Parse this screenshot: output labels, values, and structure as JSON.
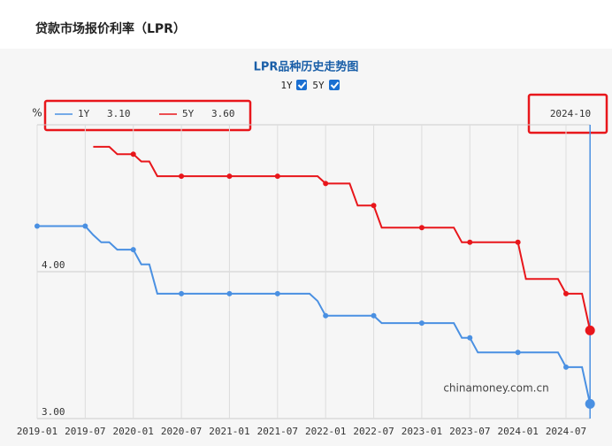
{
  "header": {
    "title": "贷款市场报价利率（LPR）"
  },
  "chart_data": {
    "type": "line",
    "title": "LPR品种历史走势图",
    "watermark": "chinamoney.com.cn",
    "y_unit": "%",
    "toggles": [
      "1Y",
      "5Y"
    ],
    "x": [
      "2019-01",
      "2019-02",
      "2019-03",
      "2019-04",
      "2019-05",
      "2019-06",
      "2019-07",
      "2019-08",
      "2019-09",
      "2019-10",
      "2019-11",
      "2019-12",
      "2020-01",
      "2020-02",
      "2020-03",
      "2020-04",
      "2020-05",
      "2020-06",
      "2020-07",
      "2020-08",
      "2020-09",
      "2020-10",
      "2020-11",
      "2020-12",
      "2021-01",
      "2021-02",
      "2021-03",
      "2021-04",
      "2021-05",
      "2021-06",
      "2021-07",
      "2021-08",
      "2021-09",
      "2021-10",
      "2021-11",
      "2021-12",
      "2022-01",
      "2022-02",
      "2022-03",
      "2022-04",
      "2022-05",
      "2022-06",
      "2022-07",
      "2022-08",
      "2022-09",
      "2022-10",
      "2022-11",
      "2022-12",
      "2023-01",
      "2023-02",
      "2023-03",
      "2023-04",
      "2023-05",
      "2023-06",
      "2023-07",
      "2023-08",
      "2023-09",
      "2023-10",
      "2023-11",
      "2023-12",
      "2024-01",
      "2024-02",
      "2024-03",
      "2024-04",
      "2024-05",
      "2024-06",
      "2024-07",
      "2024-08",
      "2024-09",
      "2024-10"
    ],
    "series": [
      {
        "name": "1Y",
        "color": "#4a90e2",
        "current_label": "3.10",
        "values": [
          4.31,
          4.31,
          4.31,
          4.31,
          4.31,
          4.31,
          4.31,
          4.25,
          4.2,
          4.2,
          4.15,
          4.15,
          4.15,
          4.05,
          4.05,
          3.85,
          3.85,
          3.85,
          3.85,
          3.85,
          3.85,
          3.85,
          3.85,
          3.85,
          3.85,
          3.85,
          3.85,
          3.85,
          3.85,
          3.85,
          3.85,
          3.85,
          3.85,
          3.85,
          3.85,
          3.8,
          3.7,
          3.7,
          3.7,
          3.7,
          3.7,
          3.7,
          3.7,
          3.65,
          3.65,
          3.65,
          3.65,
          3.65,
          3.65,
          3.65,
          3.65,
          3.65,
          3.65,
          3.55,
          3.55,
          3.45,
          3.45,
          3.45,
          3.45,
          3.45,
          3.45,
          3.45,
          3.45,
          3.45,
          3.45,
          3.45,
          3.35,
          3.35,
          3.35,
          3.1
        ]
      },
      {
        "name": "5Y",
        "color": "#e8161b",
        "current_label": "3.60",
        "values": [
          null,
          null,
          null,
          null,
          null,
          null,
          null,
          4.85,
          4.85,
          4.85,
          4.8,
          4.8,
          4.8,
          4.75,
          4.75,
          4.65,
          4.65,
          4.65,
          4.65,
          4.65,
          4.65,
          4.65,
          4.65,
          4.65,
          4.65,
          4.65,
          4.65,
          4.65,
          4.65,
          4.65,
          4.65,
          4.65,
          4.65,
          4.65,
          4.65,
          4.65,
          4.6,
          4.6,
          4.6,
          4.6,
          4.45,
          4.45,
          4.45,
          4.3,
          4.3,
          4.3,
          4.3,
          4.3,
          4.3,
          4.3,
          4.3,
          4.3,
          4.3,
          4.2,
          4.2,
          4.2,
          4.2,
          4.2,
          4.2,
          4.2,
          4.2,
          3.95,
          3.95,
          3.95,
          3.95,
          3.95,
          3.85,
          3.85,
          3.85,
          3.6
        ]
      }
    ],
    "xticks": [
      "2019-01",
      "2019-07",
      "2020-01",
      "2020-07",
      "2021-01",
      "2021-07",
      "2022-01",
      "2022-07",
      "2023-01",
      "2023-07",
      "2024-01",
      "2024-07"
    ],
    "ylim": [
      3,
      5
    ],
    "yticks": [
      {
        "value": 3,
        "label": "3.00"
      },
      {
        "value": 4,
        "label": "4.00"
      }
    ],
    "grid": true
  }
}
